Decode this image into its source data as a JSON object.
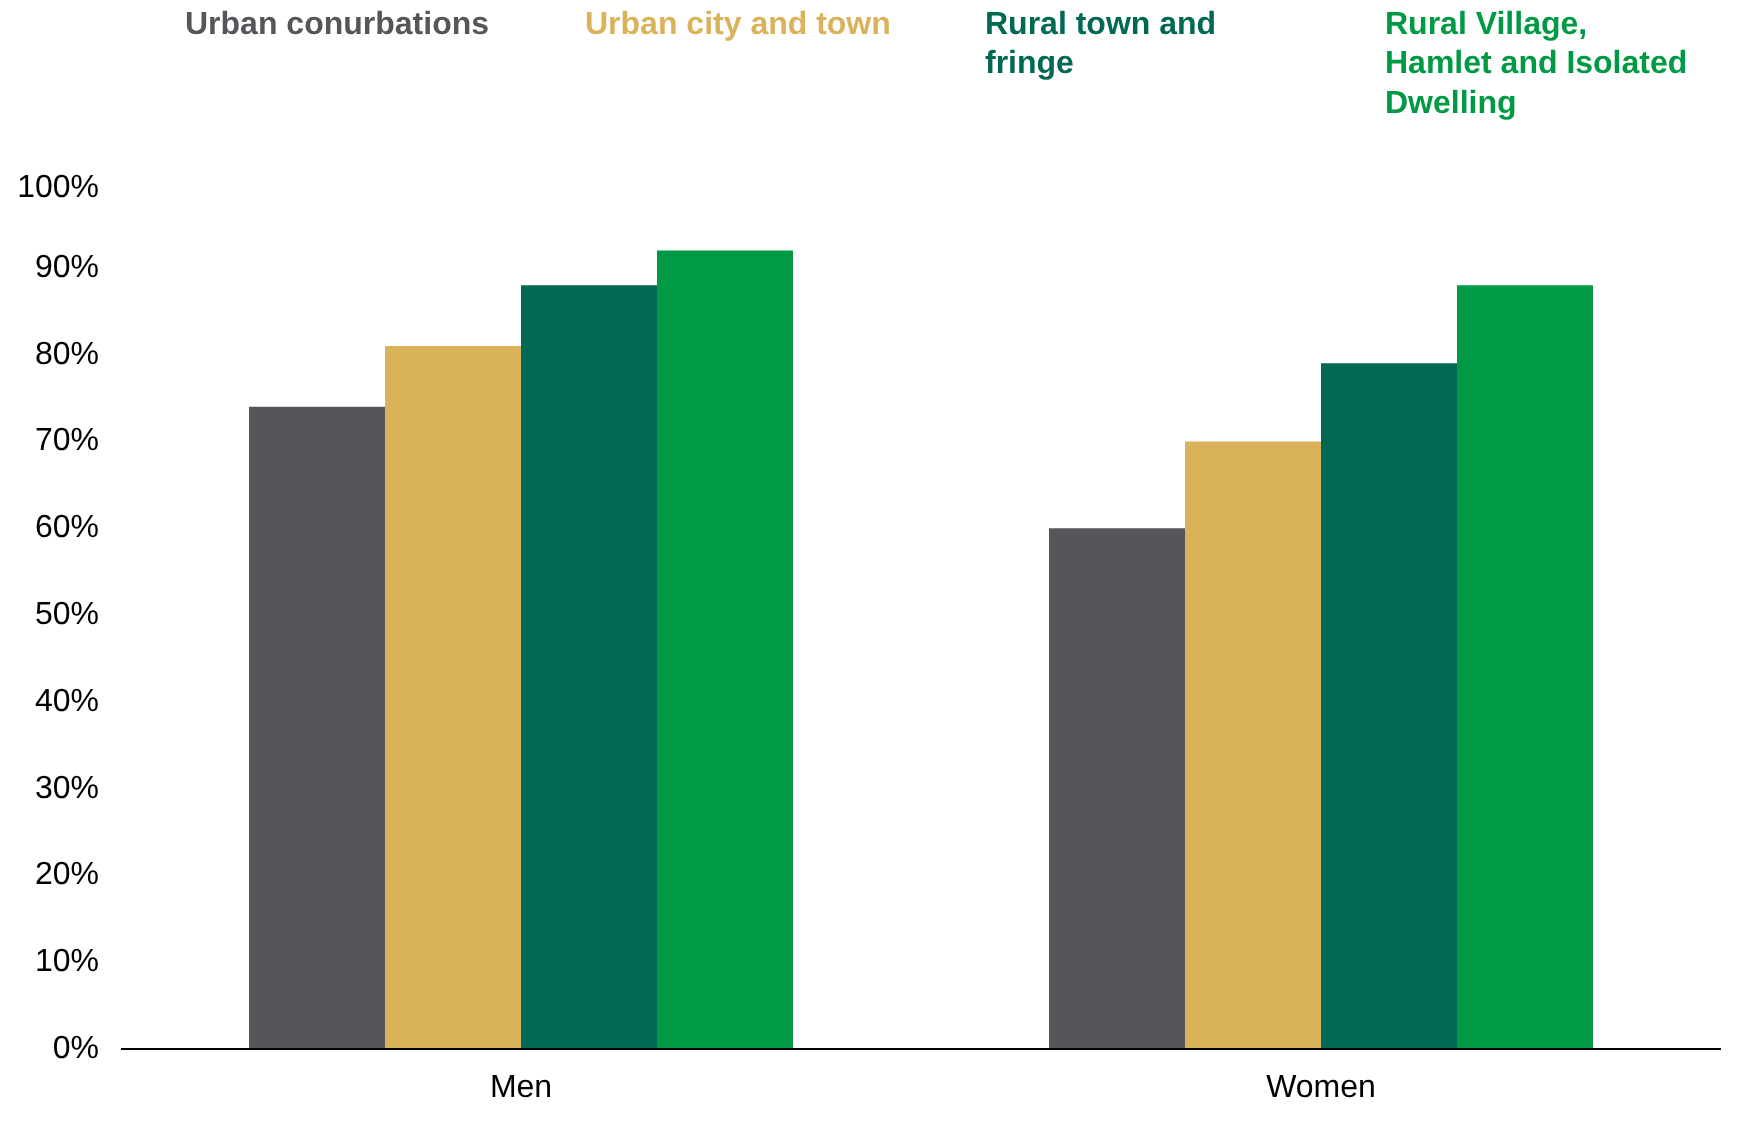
{
  "chart_data": {
    "type": "bar",
    "categories": [
      "Men",
      "Women"
    ],
    "series": [
      {
        "name": "Urban conurbations",
        "color": "#55565a",
        "values": [
          74,
          60
        ]
      },
      {
        "name": "Urban city and town",
        "color": "#d9b25a",
        "values": [
          81,
          70
        ]
      },
      {
        "name": "Rural town and fringe",
        "color": "#006853",
        "values": [
          88,
          79
        ]
      },
      {
        "name": "Rural Village, Hamlet and Isolated Dwelling",
        "color": "#009a44",
        "values": [
          92,
          88
        ]
      }
    ],
    "ylim": [
      0,
      100
    ],
    "yticks": [
      {
        "value": 0,
        "label": "0%"
      },
      {
        "value": 10,
        "label": "10%"
      },
      {
        "value": 20,
        "label": "20%"
      },
      {
        "value": 30,
        "label": "30%"
      },
      {
        "value": 40,
        "label": "40%"
      },
      {
        "value": 50,
        "label": "50%"
      },
      {
        "value": 60,
        "label": "60%"
      },
      {
        "value": 70,
        "label": "70%"
      },
      {
        "value": 80,
        "label": "80%"
      },
      {
        "value": 90,
        "label": "90%"
      },
      {
        "value": 100,
        "label": "100%"
      }
    ],
    "grid": false,
    "legend": "top"
  }
}
